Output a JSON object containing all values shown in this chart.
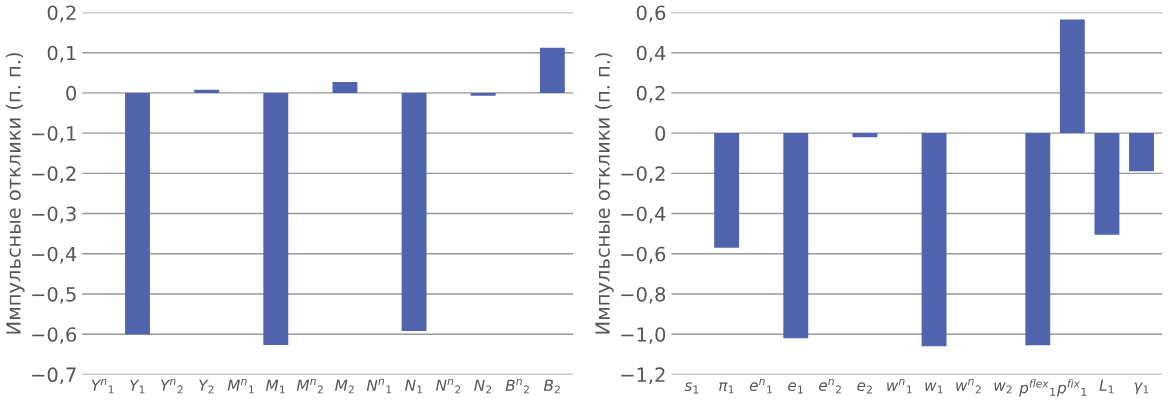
{
  "chart_data": [
    {
      "type": "bar",
      "ylabel": "Импульсные отклики (п. п.)",
      "categories": [
        "Y$^{n}$$_{1}$",
        "Y$_{1}$",
        "Y$^{n}$$_{2}$",
        "Y$_{2}$",
        "M$^{n}$$_{1}$",
        "M$_{1}$",
        "M$^{n}$$_{2}$",
        "M$_{2}$",
        "N$^{n}$$_{1}$",
        "N$_{1}$",
        "N$^{n}$$_{2}$",
        "N$_{2}$",
        "B$^{n}$$_{2}$",
        "B$_{2}$"
      ],
      "values": [
        0,
        -0.6,
        0,
        0.008,
        0,
        -0.627,
        0,
        0.027,
        0,
        -0.592,
        0,
        -0.007,
        0,
        0.112
      ],
      "color": "#5064ad",
      "ylim": [
        -0.7,
        0.2
      ],
      "yticks": [
        {
          "value": -0.7,
          "label": "−0,7"
        },
        {
          "value": -0.6,
          "label": "−0,6"
        },
        {
          "value": -0.5,
          "label": "−0,5"
        },
        {
          "value": -0.4,
          "label": "−0,4"
        },
        {
          "value": -0.3,
          "label": "−0,3"
        },
        {
          "value": -0.2,
          "label": "−0,2"
        },
        {
          "value": -0.1,
          "label": "−0,1"
        },
        0,
        {
          "value": 0.1,
          "label": "0,1"
        },
        {
          "value": 0.2,
          "label": "0,2"
        }
      ],
      "grid": "y"
    },
    {
      "type": "bar",
      "ylabel": "Импульсные отклики (п. п.)",
      "categories": [
        "s$_{1}$",
        "π$_{1}$",
        "e$^{n}$$_{1}$",
        "e$_{1}$",
        "e$^{n}$$_{2}$",
        "e$_{2}$",
        "w$^{n}$$_{1}$",
        "w$_{1}$",
        "w$^{n}$$_{2}$",
        "w$_{2}$",
        "p$^{flex}$$_{1}$",
        "p$^{fix}$$_{1}$",
        "L$_{1}$",
        "γ$_{1}$"
      ],
      "values": [
        0,
        -0.57,
        0,
        -1.02,
        0,
        -0.02,
        0,
        -1.06,
        0,
        0,
        -1.055,
        0.565,
        -0.505,
        -0.19
      ],
      "color": "#5064ad",
      "ylim": [
        -1.2,
        0.6
      ],
      "yticks": [
        {
          "value": -1.2,
          "label": "−1,2"
        },
        {
          "value": -1.0,
          "label": "−1,0"
        },
        {
          "value": -0.8,
          "label": "−0,8"
        },
        {
          "value": -0.6,
          "label": "−0,6"
        },
        {
          "value": -0.4,
          "label": "−0,4"
        },
        {
          "value": -0.2,
          "label": "−0,2"
        },
        0,
        {
          "value": 0.2,
          "label": "0,2"
        },
        {
          "value": 0.4,
          "label": "0,4"
        },
        {
          "value": 0.6,
          "label": "0,6"
        }
      ],
      "grid": "y"
    }
  ]
}
